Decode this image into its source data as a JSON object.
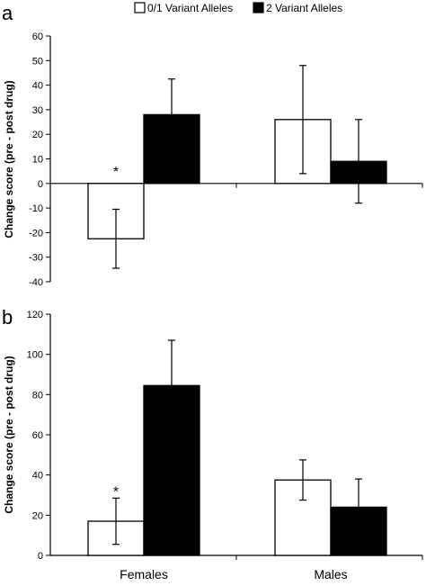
{
  "legend": {
    "entries": [
      {
        "label": "0/1 Variant Alleles",
        "color": "#ffffff"
      },
      {
        "label": "2 Variant Alleles",
        "color": "#000000"
      }
    ],
    "placement": "top-center"
  },
  "chart_data": [
    {
      "type": "bar",
      "panel": "a",
      "categories": [
        "Females",
        "Males"
      ],
      "series": [
        {
          "name": "0/1 Variant Alleles",
          "values": [
            -22.5,
            26
          ],
          "errors": [
            12,
            22
          ],
          "color": "#ffffff"
        },
        {
          "name": "2 Variant Alleles",
          "values": [
            28,
            9
          ],
          "errors": [
            14.5,
            17
          ],
          "color": "#000000"
        }
      ],
      "ylabel": "Change score (pre - post drug)",
      "ylim": [
        -40,
        60
      ],
      "yticks": [
        60,
        50,
        40,
        30,
        20,
        10,
        0,
        -10,
        -20,
        -30,
        -40
      ],
      "significance": [
        {
          "category": "Females",
          "series": 0,
          "label": "*"
        }
      ],
      "grid": false
    },
    {
      "type": "bar",
      "panel": "b",
      "categories": [
        "Females",
        "Males"
      ],
      "series": [
        {
          "name": "0/1 Variant Alleles",
          "values": [
            17,
            37.5
          ],
          "errors": [
            11.5,
            10
          ],
          "color": "#ffffff"
        },
        {
          "name": "2 Variant Alleles",
          "values": [
            84.5,
            24
          ],
          "errors": [
            22.5,
            14
          ],
          "color": "#000000"
        }
      ],
      "ylabel": "Change score (pre - post drug)",
      "ylim": [
        0,
        120
      ],
      "yticks": [
        120,
        100,
        80,
        60,
        40,
        20,
        0
      ],
      "xlabels": [
        "Females",
        "Males"
      ],
      "significance": [
        {
          "category": "Females",
          "series": 0,
          "label": "*"
        }
      ],
      "grid": false
    }
  ]
}
